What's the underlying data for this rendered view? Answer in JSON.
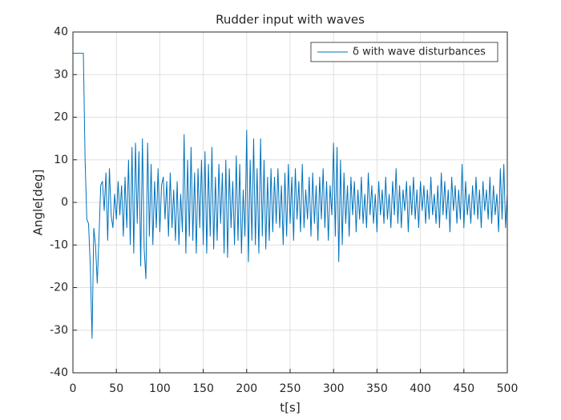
{
  "chart_data": {
    "type": "line",
    "title": "Rudder input with waves",
    "xlabel": "t[s]",
    "ylabel": "Angle[deg]",
    "x": [
      0,
      2,
      4,
      6,
      8,
      10,
      12,
      14,
      16,
      18,
      20,
      22,
      24,
      26,
      28,
      30,
      32,
      34,
      36,
      38,
      40,
      42,
      44,
      46,
      48,
      50,
      52,
      54,
      56,
      58,
      60,
      62,
      64,
      66,
      68,
      70,
      72,
      74,
      76,
      78,
      80,
      82,
      84,
      86,
      88,
      90,
      92,
      94,
      96,
      98,
      100,
      102,
      104,
      106,
      108,
      110,
      112,
      114,
      116,
      118,
      120,
      122,
      124,
      126,
      128,
      130,
      132,
      134,
      136,
      138,
      140,
      142,
      144,
      146,
      148,
      150,
      152,
      154,
      156,
      158,
      160,
      162,
      164,
      166,
      168,
      170,
      172,
      174,
      176,
      178,
      180,
      182,
      184,
      186,
      188,
      190,
      192,
      194,
      196,
      198,
      200,
      202,
      204,
      206,
      208,
      210,
      212,
      214,
      216,
      218,
      220,
      222,
      224,
      226,
      228,
      230,
      232,
      234,
      236,
      238,
      240,
      242,
      244,
      246,
      248,
      250,
      252,
      254,
      256,
      258,
      260,
      262,
      264,
      266,
      268,
      270,
      272,
      274,
      276,
      278,
      280,
      282,
      284,
      286,
      288,
      290,
      292,
      294,
      296,
      298,
      300,
      302,
      304,
      306,
      308,
      310,
      312,
      314,
      316,
      318,
      320,
      322,
      324,
      326,
      328,
      330,
      332,
      334,
      336,
      338,
      340,
      342,
      344,
      346,
      348,
      350,
      352,
      354,
      356,
      358,
      360,
      362,
      364,
      366,
      368,
      370,
      372,
      374,
      376,
      378,
      380,
      382,
      384,
      386,
      388,
      390,
      392,
      394,
      396,
      398,
      400,
      402,
      404,
      406,
      408,
      410,
      412,
      414,
      416,
      418,
      420,
      422,
      424,
      426,
      428,
      430,
      432,
      434,
      436,
      438,
      440,
      442,
      444,
      446,
      448,
      450,
      452,
      454,
      456,
      458,
      460,
      462,
      464,
      466,
      468,
      470,
      472,
      474,
      476,
      478,
      480,
      482,
      484,
      486,
      488,
      490,
      492,
      494,
      496,
      498,
      500
    ],
    "series": [
      {
        "name": "δ with wave disturbances",
        "color": "#0072BD",
        "values": [
          35,
          35,
          35,
          35,
          35,
          35,
          35,
          10,
          -4,
          -5,
          -15,
          -32,
          -6,
          -10,
          -19,
          -8,
          4,
          5,
          -2,
          7,
          -9,
          8,
          -3,
          -6,
          2,
          -4,
          5,
          -3,
          4,
          -8,
          6,
          -6,
          10,
          -10,
          13,
          -12,
          14,
          -5,
          12,
          -15,
          15,
          -11,
          -18,
          14,
          -8,
          9,
          -10,
          5,
          -6,
          8,
          -7,
          4,
          6,
          -4,
          5,
          -8,
          7,
          -6,
          3,
          -9,
          5,
          -10,
          2,
          -7,
          16,
          -12,
          10,
          -8,
          13,
          -9,
          7,
          -12,
          8,
          -6,
          10,
          -10,
          12,
          -12,
          9,
          -8,
          13,
          -11,
          6,
          -9,
          9,
          -5,
          7,
          -12,
          10,
          -13,
          8,
          -6,
          5,
          -10,
          11,
          -9,
          9,
          -12,
          3,
          -8,
          17,
          -14,
          10,
          -9,
          15,
          -10,
          8,
          -12,
          15,
          -8,
          10,
          -11,
          6,
          -9,
          8,
          -7,
          6,
          -5,
          8,
          -6,
          4,
          -10,
          7,
          -8,
          9,
          -5,
          6,
          -9,
          8,
          -4,
          5,
          -7,
          9,
          -6,
          3,
          -4,
          6,
          -8,
          7,
          -5,
          4,
          -9,
          6,
          -4,
          8,
          -6,
          5,
          -9,
          4,
          -3,
          14,
          -8,
          13,
          -14,
          10,
          -10,
          7,
          -5,
          4,
          -8,
          6,
          -3,
          5,
          -7,
          3,
          -4,
          6,
          -5,
          2,
          -6,
          7,
          -3,
          4,
          -5,
          2,
          -7,
          5,
          -3,
          3,
          -5,
          6,
          -4,
          2,
          -6,
          5,
          -3,
          8,
          -5,
          4,
          -6,
          3,
          -2,
          5,
          -7,
          4,
          -3,
          6,
          -4,
          3,
          -6,
          5,
          -2,
          4,
          -5,
          3,
          -4,
          6,
          -3,
          2,
          -5,
          4,
          -6,
          7,
          -3,
          5,
          -4,
          3,
          -7,
          6,
          -2,
          4,
          -5,
          3,
          -4,
          9,
          -6,
          5,
          -3,
          2,
          -5,
          4,
          -3,
          6,
          -4,
          3,
          -6,
          5,
          -2,
          3,
          -4,
          6,
          -5,
          4,
          -3,
          2,
          -7,
          8,
          -4,
          9,
          -6,
          2
        ]
      }
    ],
    "xlim": [
      0,
      500
    ],
    "ylim": [
      -40,
      40
    ],
    "xticks": [
      0,
      50,
      100,
      150,
      200,
      250,
      300,
      350,
      400,
      450,
      500
    ],
    "yticks": [
      -40,
      -30,
      -20,
      -10,
      0,
      10,
      20,
      30,
      40
    ],
    "grid": true,
    "legend": "upper right"
  }
}
